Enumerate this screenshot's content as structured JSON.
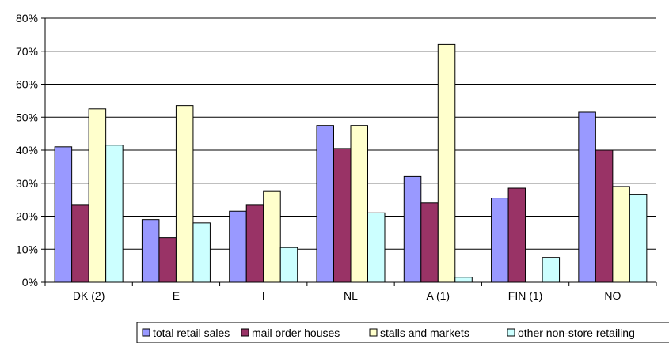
{
  "chart_data": {
    "type": "bar",
    "title": "",
    "xlabel": "",
    "ylabel": "",
    "ylim": [
      0,
      80
    ],
    "yticks": [
      0,
      10,
      20,
      30,
      40,
      50,
      60,
      70,
      80
    ],
    "ytick_labels": [
      "0%",
      "10%",
      "20%",
      "30%",
      "40%",
      "50%",
      "60%",
      "70%",
      "80%"
    ],
    "categories": [
      "DK (2)",
      "E",
      "I",
      "NL",
      "A (1)",
      "FIN (1)",
      "NO"
    ],
    "series": [
      {
        "name": "total retail sales",
        "color": "#9999ff",
        "values": [
          41,
          19,
          21.5,
          47.5,
          32,
          25.5,
          51.5
        ]
      },
      {
        "name": "mail order houses",
        "color": "#993366",
        "values": [
          23.5,
          13.5,
          23.5,
          40.5,
          24,
          28.5,
          40
        ]
      },
      {
        "name": "stalls and markets",
        "color": "#ffffcc",
        "values": [
          52.5,
          53.5,
          27.5,
          47.5,
          72,
          null,
          29
        ]
      },
      {
        "name": "other non-store retailing",
        "color": "#ccffff",
        "values": [
          41.5,
          18,
          10.5,
          21,
          1.5,
          7.5,
          26.5
        ]
      }
    ],
    "grid": true,
    "legend_position": "bottom"
  }
}
